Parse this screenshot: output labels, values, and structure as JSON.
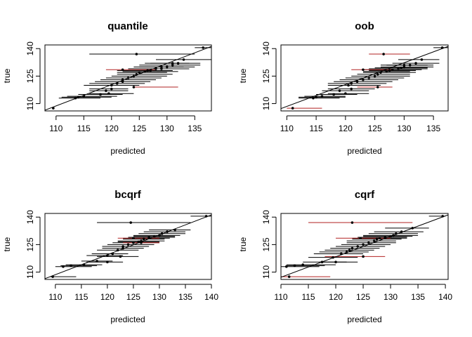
{
  "chart_data": [
    {
      "type": "scatter",
      "title": "quantile",
      "xlabel": "predicted",
      "ylabel": "true",
      "xlim": [
        108,
        138
      ],
      "ylim": [
        106,
        142
      ],
      "xticks": [
        110,
        115,
        120,
        125,
        130,
        135
      ],
      "yticks": [
        110,
        125,
        140
      ],
      "reference_line": {
        "from": [
          108,
          106.4
        ],
        "to": [
          138,
          141.2
        ]
      },
      "points": [
        {
          "x": 109.5,
          "y": 107.5,
          "lo": 109.5,
          "hi": 109.5,
          "out": false
        },
        {
          "x": 113.5,
          "y": 113,
          "lo": 110.5,
          "hi": 118,
          "out": false
        },
        {
          "x": 114,
          "y": 113.5,
          "lo": 111,
          "hi": 120,
          "out": false
        },
        {
          "x": 115,
          "y": 114,
          "lo": 112,
          "hi": 121,
          "out": false
        },
        {
          "x": 118,
          "y": 115,
          "lo": 114,
          "hi": 122,
          "out": false
        },
        {
          "x": 119,
          "y": 117,
          "lo": 116,
          "hi": 123,
          "out": false
        },
        {
          "x": 120,
          "y": 120,
          "lo": 115,
          "hi": 125,
          "out": false
        },
        {
          "x": 121,
          "y": 121,
          "lo": 116,
          "hi": 126,
          "out": false
        },
        {
          "x": 122,
          "y": 122,
          "lo": 117,
          "hi": 127,
          "out": false
        },
        {
          "x": 122,
          "y": 123,
          "lo": 118,
          "hi": 128,
          "out": false
        },
        {
          "x": 123,
          "y": 124,
          "lo": 119,
          "hi": 129,
          "out": false
        },
        {
          "x": 124,
          "y": 125,
          "lo": 120,
          "hi": 130,
          "out": false
        },
        {
          "x": 124.5,
          "y": 126,
          "lo": 121,
          "hi": 131,
          "out": false
        },
        {
          "x": 125,
          "y": 127,
          "lo": 121,
          "hi": 130,
          "out": false
        },
        {
          "x": 126,
          "y": 127.5,
          "lo": 122,
          "hi": 132,
          "out": false
        },
        {
          "x": 126.5,
          "y": 128,
          "lo": 122,
          "hi": 131,
          "out": false
        },
        {
          "x": 127,
          "y": 128,
          "lo": 121,
          "hi": 131,
          "out": false
        },
        {
          "x": 128,
          "y": 129,
          "lo": 124,
          "hi": 133,
          "out": false
        },
        {
          "x": 129,
          "y": 129,
          "lo": 123,
          "hi": 134,
          "out": false
        },
        {
          "x": 129,
          "y": 130,
          "lo": 124,
          "hi": 133,
          "out": false
        },
        {
          "x": 130,
          "y": 130,
          "lo": 125,
          "hi": 135,
          "out": false
        },
        {
          "x": 131,
          "y": 131,
          "lo": 125,
          "hi": 136,
          "out": false
        },
        {
          "x": 131,
          "y": 132,
          "lo": 126,
          "hi": 134,
          "out": false
        },
        {
          "x": 132,
          "y": 132,
          "lo": 127,
          "hi": 136,
          "out": false
        },
        {
          "x": 133,
          "y": 134,
          "lo": 128,
          "hi": 138,
          "out": false
        },
        {
          "x": 124.5,
          "y": 137,
          "lo": 116,
          "hi": 135,
          "out": false
        },
        {
          "x": 136.5,
          "y": 140.5,
          "lo": 135,
          "hi": 138,
          "out": false
        },
        {
          "x": 119.5,
          "y": 115.5,
          "lo": 116,
          "hi": 124,
          "out": false
        },
        {
          "x": 120,
          "y": 118,
          "lo": 116,
          "hi": 123,
          "out": false
        },
        {
          "x": 124,
          "y": 119,
          "lo": 124,
          "hi": 132,
          "out": true
        },
        {
          "x": 122,
          "y": 128.5,
          "lo": 119,
          "hi": 128,
          "out": true
        }
      ]
    },
    {
      "type": "scatter",
      "title": "oob",
      "xlabel": "predicted",
      "ylabel": "true",
      "xlim": [
        109,
        137.5
      ],
      "ylim": [
        106,
        142
      ],
      "xticks": [
        110,
        115,
        120,
        125,
        130,
        135
      ],
      "yticks": [
        110,
        125,
        140
      ],
      "reference_line": {
        "from": [
          109,
          107.3
        ],
        "to": [
          137.5,
          141.2
        ]
      },
      "points": [
        {
          "x": 111,
          "y": 107.5,
          "lo": 110,
          "hi": 116,
          "out": true
        },
        {
          "x": 114.5,
          "y": 113,
          "lo": 112,
          "hi": 119,
          "out": false
        },
        {
          "x": 115,
          "y": 113.5,
          "lo": 112,
          "hi": 120,
          "out": false
        },
        {
          "x": 116,
          "y": 114,
          "lo": 113,
          "hi": 120,
          "out": false
        },
        {
          "x": 118,
          "y": 115,
          "lo": 115,
          "hi": 122,
          "out": false
        },
        {
          "x": 119,
          "y": 117,
          "lo": 116,
          "hi": 124,
          "out": false
        },
        {
          "x": 120.5,
          "y": 120,
          "lo": 117,
          "hi": 126,
          "out": false
        },
        {
          "x": 121,
          "y": 121,
          "lo": 117,
          "hi": 127,
          "out": false
        },
        {
          "x": 122,
          "y": 122,
          "lo": 118,
          "hi": 128,
          "out": false
        },
        {
          "x": 123,
          "y": 123,
          "lo": 119,
          "hi": 129,
          "out": false
        },
        {
          "x": 124,
          "y": 124,
          "lo": 120,
          "hi": 130,
          "out": false
        },
        {
          "x": 125,
          "y": 125,
          "lo": 121,
          "hi": 131,
          "out": false
        },
        {
          "x": 125.5,
          "y": 126,
          "lo": 122,
          "hi": 131,
          "out": false
        },
        {
          "x": 126,
          "y": 127,
          "lo": 123,
          "hi": 132,
          "out": false
        },
        {
          "x": 127,
          "y": 127.5,
          "lo": 123,
          "hi": 131,
          "out": false
        },
        {
          "x": 127.5,
          "y": 128,
          "lo": 124,
          "hi": 132,
          "out": false
        },
        {
          "x": 128,
          "y": 128.5,
          "lo": 123,
          "hi": 133,
          "out": false
        },
        {
          "x": 129,
          "y": 129,
          "lo": 124,
          "hi": 134,
          "out": false
        },
        {
          "x": 129.5,
          "y": 129.5,
          "lo": 125,
          "hi": 134,
          "out": false
        },
        {
          "x": 130,
          "y": 130,
          "lo": 126,
          "hi": 135,
          "out": false
        },
        {
          "x": 130,
          "y": 131,
          "lo": 126,
          "hi": 134,
          "out": false
        },
        {
          "x": 131,
          "y": 131,
          "lo": 127,
          "hi": 135,
          "out": false
        },
        {
          "x": 132,
          "y": 132,
          "lo": 128,
          "hi": 136,
          "out": false
        },
        {
          "x": 133,
          "y": 134,
          "lo": 129,
          "hi": 136,
          "out": false
        },
        {
          "x": 126.5,
          "y": 137,
          "lo": 124,
          "hi": 131,
          "out": true
        },
        {
          "x": 136.5,
          "y": 140.5,
          "lo": 135,
          "hi": 138,
          "out": false
        },
        {
          "x": 120,
          "y": 115.5,
          "lo": 117,
          "hi": 124,
          "out": false
        },
        {
          "x": 121,
          "y": 118,
          "lo": 117,
          "hi": 125,
          "out": false
        },
        {
          "x": 125.5,
          "y": 119,
          "lo": 122,
          "hi": 128,
          "out": true
        },
        {
          "x": 123,
          "y": 128.5,
          "lo": 121,
          "hi": 128,
          "out": true
        }
      ]
    },
    {
      "type": "scatter",
      "title": "bcqrf",
      "xlabel": "predicted",
      "ylabel": "true",
      "xlim": [
        108,
        140
      ],
      "ylim": [
        106,
        142
      ],
      "xticks": [
        110,
        115,
        120,
        125,
        130,
        135,
        140
      ],
      "yticks": [
        110,
        125,
        140
      ],
      "reference_line": {
        "from": [
          108,
          106.4
        ],
        "to": [
          140,
          141.2
        ]
      },
      "points": [
        {
          "x": 109.5,
          "y": 107.5,
          "lo": 109,
          "hi": 114,
          "out": false
        },
        {
          "x": 111.5,
          "y": 113,
          "lo": 110,
          "hi": 117,
          "out": false
        },
        {
          "x": 113,
          "y": 113.5,
          "lo": 111,
          "hi": 118,
          "out": false
        },
        {
          "x": 115.5,
          "y": 114,
          "lo": 112,
          "hi": 119,
          "out": false
        },
        {
          "x": 118,
          "y": 116,
          "lo": 115,
          "hi": 121,
          "out": false
        },
        {
          "x": 120,
          "y": 119,
          "lo": 116,
          "hi": 123,
          "out": false
        },
        {
          "x": 121,
          "y": 120,
          "lo": 117,
          "hi": 124,
          "out": false
        },
        {
          "x": 122,
          "y": 122,
          "lo": 118,
          "hi": 126,
          "out": false
        },
        {
          "x": 123,
          "y": 123,
          "lo": 119,
          "hi": 127,
          "out": false
        },
        {
          "x": 123,
          "y": 124,
          "lo": 119,
          "hi": 128,
          "out": false
        },
        {
          "x": 124,
          "y": 125,
          "lo": 120,
          "hi": 129,
          "out": false
        },
        {
          "x": 125,
          "y": 126,
          "lo": 121,
          "hi": 130,
          "out": false
        },
        {
          "x": 126,
          "y": 126.5,
          "lo": 122,
          "hi": 130,
          "out": false
        },
        {
          "x": 126.5,
          "y": 127,
          "lo": 122,
          "hi": 131,
          "out": false
        },
        {
          "x": 127,
          "y": 128,
          "lo": 123,
          "hi": 131,
          "out": false
        },
        {
          "x": 128,
          "y": 128.5,
          "lo": 123,
          "hi": 132,
          "out": false
        },
        {
          "x": 128,
          "y": 129,
          "lo": 124,
          "hi": 133,
          "out": false
        },
        {
          "x": 129,
          "y": 129.5,
          "lo": 125,
          "hi": 133,
          "out": false
        },
        {
          "x": 130,
          "y": 130,
          "lo": 125,
          "hi": 134,
          "out": false
        },
        {
          "x": 130.5,
          "y": 131,
          "lo": 126,
          "hi": 135,
          "out": false
        },
        {
          "x": 131.5,
          "y": 132,
          "lo": 127,
          "hi": 135,
          "out": false
        },
        {
          "x": 133,
          "y": 133,
          "lo": 128,
          "hi": 136,
          "out": false
        },
        {
          "x": 124.5,
          "y": 137,
          "lo": 118,
          "hi": 136,
          "out": false
        },
        {
          "x": 139,
          "y": 140.5,
          "lo": 136,
          "hi": 140,
          "out": false
        },
        {
          "x": 120,
          "y": 115.5,
          "lo": 116,
          "hi": 123,
          "out": false
        },
        {
          "x": 122.5,
          "y": 118.5,
          "lo": 118,
          "hi": 126,
          "out": false
        },
        {
          "x": 126.5,
          "y": 126,
          "lo": 123,
          "hi": 130,
          "out": true
        },
        {
          "x": 125,
          "y": 128.5,
          "lo": 122,
          "hi": 130,
          "out": true
        }
      ]
    },
    {
      "type": "scatter",
      "title": "cqrf",
      "xlabel": "predicted",
      "ylabel": "true",
      "xlim": [
        110,
        140.5
      ],
      "ylim": [
        106,
        142
      ],
      "xticks": [
        110,
        115,
        120,
        125,
        130,
        135,
        140
      ],
      "yticks": [
        110,
        125,
        140
      ],
      "reference_line": {
        "from": [
          110,
          107.2
        ],
        "to": [
          140.5,
          141.2
        ]
      },
      "points": [
        {
          "x": 111.5,
          "y": 107.5,
          "lo": 110,
          "hi": 119,
          "out": true
        },
        {
          "x": 111,
          "y": 113,
          "lo": 110,
          "hi": 117,
          "out": false
        },
        {
          "x": 112.5,
          "y": 113.5,
          "lo": 111,
          "hi": 118,
          "out": false
        },
        {
          "x": 114,
          "y": 114,
          "lo": 111,
          "hi": 120,
          "out": false
        },
        {
          "x": 117.5,
          "y": 115.5,
          "lo": 114,
          "hi": 122,
          "out": false
        },
        {
          "x": 119.5,
          "y": 118,
          "lo": 115,
          "hi": 124,
          "out": false
        },
        {
          "x": 121,
          "y": 120,
          "lo": 116,
          "hi": 125,
          "out": false
        },
        {
          "x": 122,
          "y": 121,
          "lo": 117,
          "hi": 126,
          "out": false
        },
        {
          "x": 122.5,
          "y": 122,
          "lo": 118,
          "hi": 127,
          "out": false
        },
        {
          "x": 123,
          "y": 123,
          "lo": 119,
          "hi": 128,
          "out": false
        },
        {
          "x": 124,
          "y": 124,
          "lo": 120,
          "hi": 129,
          "out": false
        },
        {
          "x": 125,
          "y": 125,
          "lo": 121,
          "hi": 130,
          "out": false
        },
        {
          "x": 126,
          "y": 126,
          "lo": 122,
          "hi": 131,
          "out": false
        },
        {
          "x": 127,
          "y": 127,
          "lo": 122,
          "hi": 131,
          "out": false
        },
        {
          "x": 127.5,
          "y": 128,
          "lo": 123,
          "hi": 132,
          "out": false
        },
        {
          "x": 128,
          "y": 128.5,
          "lo": 123,
          "hi": 133,
          "out": false
        },
        {
          "x": 129,
          "y": 129,
          "lo": 124,
          "hi": 133,
          "out": false
        },
        {
          "x": 130,
          "y": 129.5,
          "lo": 125,
          "hi": 134,
          "out": false
        },
        {
          "x": 130.5,
          "y": 130,
          "lo": 125,
          "hi": 135,
          "out": false
        },
        {
          "x": 131,
          "y": 131,
          "lo": 126,
          "hi": 135,
          "out": false
        },
        {
          "x": 132,
          "y": 132,
          "lo": 127,
          "hi": 136,
          "out": false
        },
        {
          "x": 134,
          "y": 134,
          "lo": 129,
          "hi": 137,
          "out": false
        },
        {
          "x": 123,
          "y": 137,
          "lo": 115,
          "hi": 134,
          "out": true
        },
        {
          "x": 139.5,
          "y": 140.5,
          "lo": 137,
          "hi": 140,
          "out": false
        },
        {
          "x": 120,
          "y": 115.5,
          "lo": 117,
          "hi": 124,
          "out": false
        },
        {
          "x": 125,
          "y": 118.5,
          "lo": 118,
          "hi": 129,
          "out": true
        },
        {
          "x": 124.5,
          "y": 128.5,
          "lo": 120,
          "hi": 130,
          "out": true
        }
      ]
    }
  ],
  "colors": {
    "covered": "#000000",
    "not_covered": "#b22222",
    "reference_line": "#000000"
  }
}
